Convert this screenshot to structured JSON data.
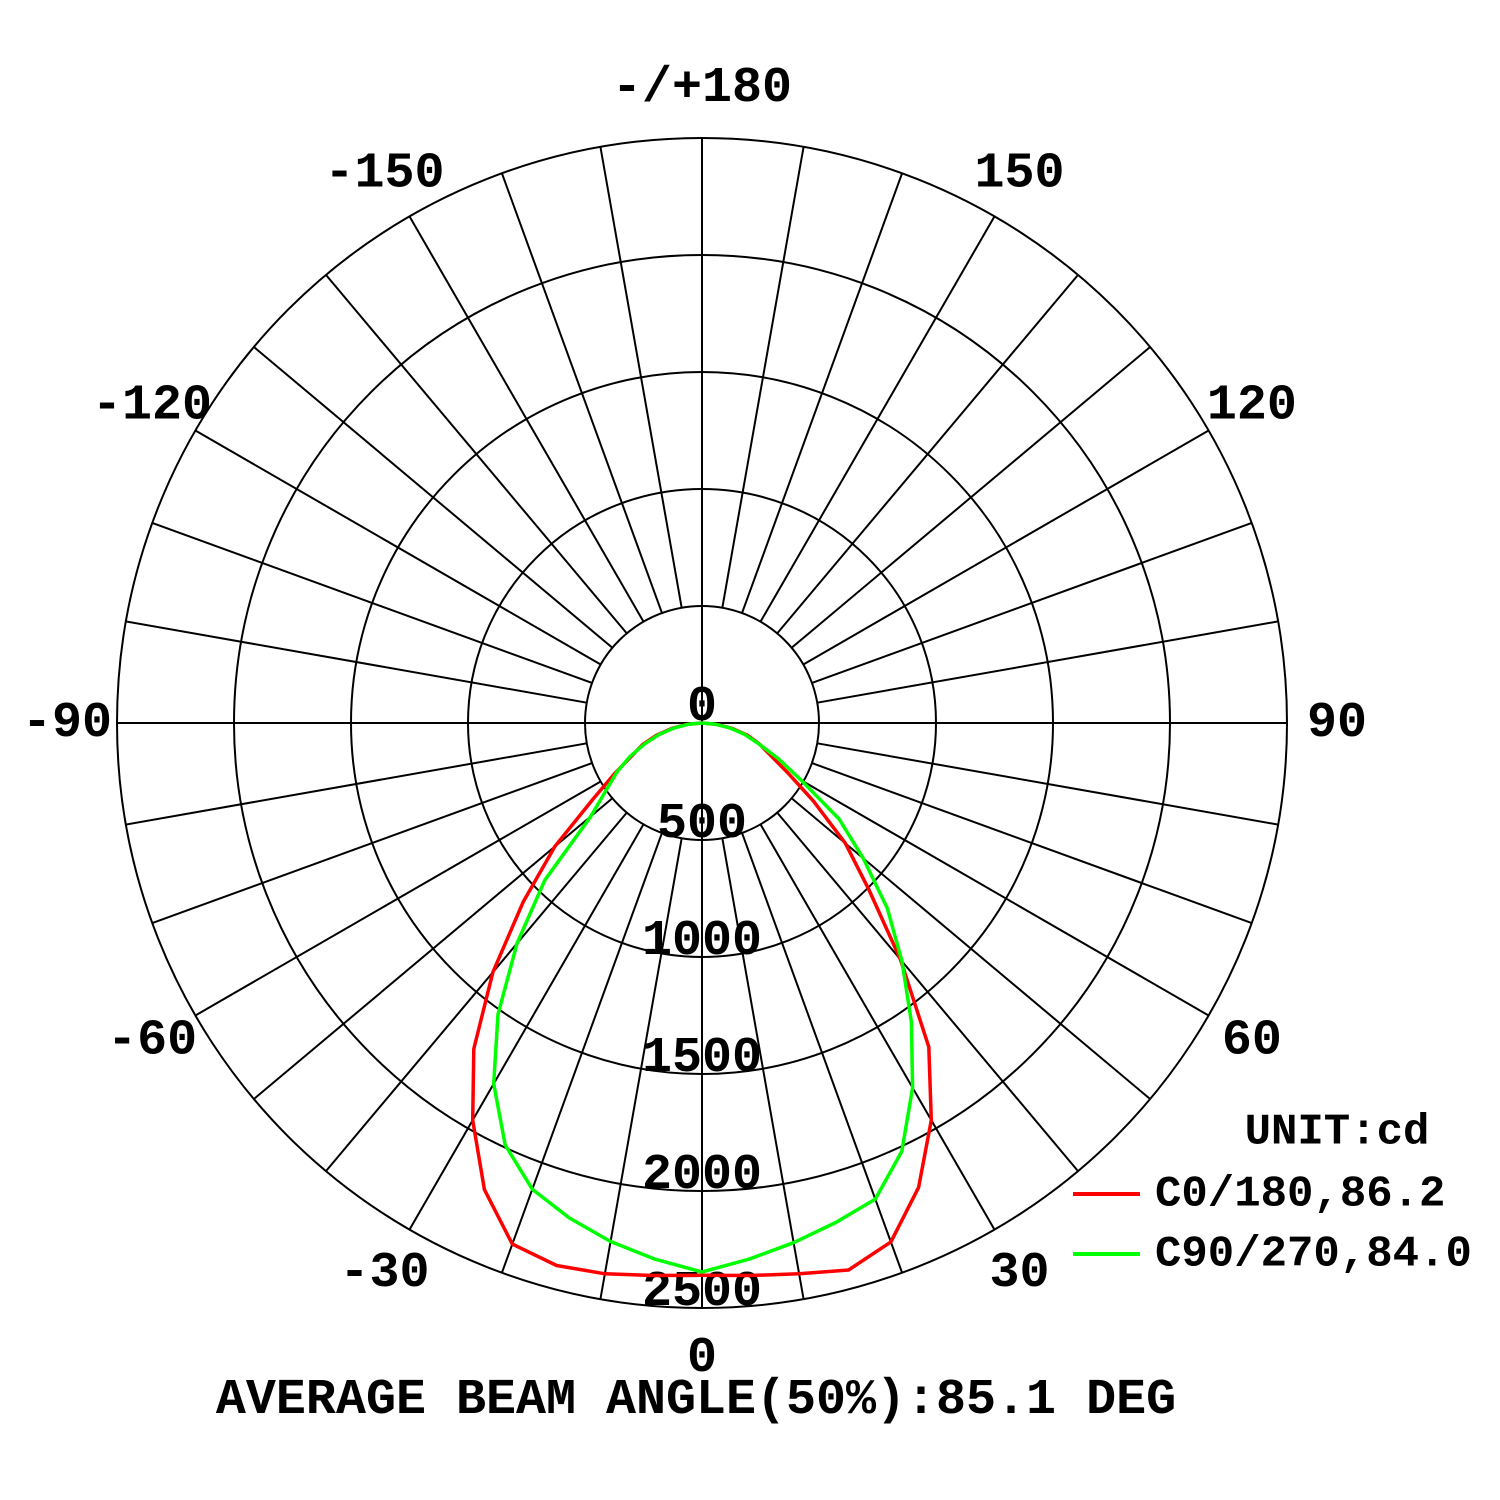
{
  "chart_data": {
    "type": "polar",
    "unit": "UNIT:cd",
    "footer": "AVERAGE BEAM ANGLE(50%):85.1 DEG",
    "theta": [
      -90,
      -85,
      -80,
      -75,
      -70,
      -65,
      -60,
      -55,
      -50,
      -45,
      -40,
      -35,
      -30,
      -25,
      -20,
      -15,
      -10,
      -5,
      0,
      5,
      10,
      15,
      20,
      25,
      30,
      35,
      40,
      45,
      50,
      55,
      60,
      65,
      70,
      75,
      80,
      85,
      90
    ],
    "series": [
      {
        "name": "C0/180,86.2",
        "color": "#ff0000",
        "values": [
          0,
          60,
          130,
          200,
          270,
          330,
          430,
          570,
          820,
          1080,
          1390,
          1700,
          1960,
          2200,
          2370,
          2400,
          2390,
          2370,
          2360,
          2370,
          2390,
          2420,
          2360,
          2190,
          1960,
          1690,
          1320,
          1010,
          800,
          580,
          420,
          320,
          260,
          200,
          130,
          60,
          0
        ]
      },
      {
        "name": "C90/270,84.0",
        "color": "#00ff00",
        "values": [
          0,
          55,
          120,
          190,
          260,
          340,
          420,
          500,
          620,
          950,
          1230,
          1520,
          1780,
          1990,
          2120,
          2190,
          2250,
          2300,
          2346,
          2300,
          2255,
          2210,
          2165,
          2020,
          1800,
          1560,
          1330,
          1120,
          900,
          715,
          490,
          360,
          255,
          190,
          120,
          55,
          0
        ]
      }
    ],
    "rlim": [
      0,
      2500
    ],
    "rticks": [
      0,
      500,
      1000,
      1500,
      2000,
      2500
    ],
    "thetaticks": [
      0,
      30,
      60,
      90,
      120,
      150,
      {
        "value": 180,
        "label": "-/+180"
      },
      -150,
      -120,
      -90,
      -60,
      -30
    ],
    "grid": true
  }
}
